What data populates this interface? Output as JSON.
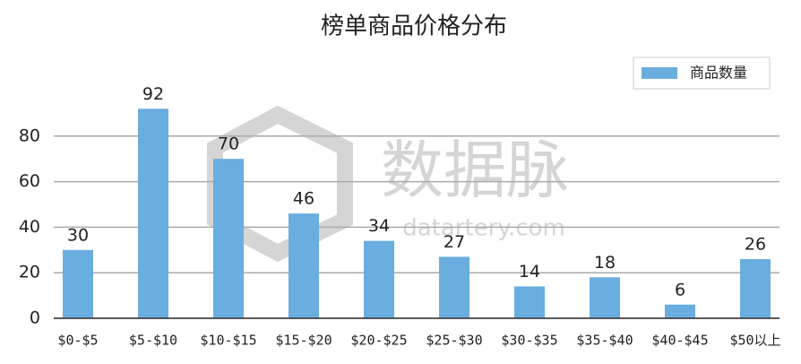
{
  "chart_data": {
    "type": "bar",
    "title": "榜单商品价格分布",
    "categories": [
      "$0-$5",
      "$5-$10",
      "$10-$15",
      "$15-$20",
      "$20-$25",
      "$25-$30",
      "$30-$35",
      "$35-$40",
      "$40-$45",
      "$50以上"
    ],
    "series": [
      {
        "name": "商品数量",
        "color": "#6aaddf",
        "values": [
          30,
          92,
          70,
          46,
          34,
          27,
          14,
          18,
          6,
          26
        ]
      }
    ],
    "ylim": [
      0,
      100
    ],
    "yticks": [
      0,
      20,
      40,
      60,
      80
    ],
    "grid": true,
    "legend": "top-right",
    "watermark": {
      "brand": "数据脉",
      "site": "datartery.com"
    }
  }
}
